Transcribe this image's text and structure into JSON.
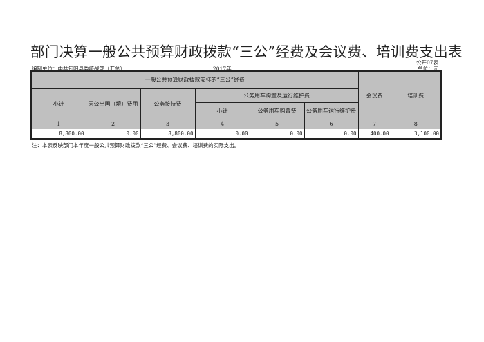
{
  "title": "部门决算一般公共预算财政拨款“三公”经费及会议费、培训费支出表",
  "form_code": "公开07表",
  "unit": "单位：元",
  "org": "编制单位：中共旬阳县委统战部（汇总）",
  "year": "2017年",
  "table": {
    "group_header": "一般公共预算财政拨款安排的“三公”经费",
    "car_header": "公务用车购置及运行维护费",
    "headers": [
      "小计",
      "因公出国（境）费用",
      "公务接待费",
      "小计",
      "公务用车购置费",
      "公务用车运行维护费",
      "会议费",
      "培训费"
    ],
    "numbers": [
      "1",
      "2",
      "3",
      "4",
      "5",
      "6",
      "7",
      "8"
    ],
    "values": [
      "8,800.00",
      "0.00",
      "8,800.00",
      "0.00",
      "0.00",
      "0.00",
      "400.00",
      "3,100.00"
    ]
  },
  "note": "注：本表反映部门本年度一般公共预算财政拨款“三公”经费、会议费、培训费的实际支出。"
}
